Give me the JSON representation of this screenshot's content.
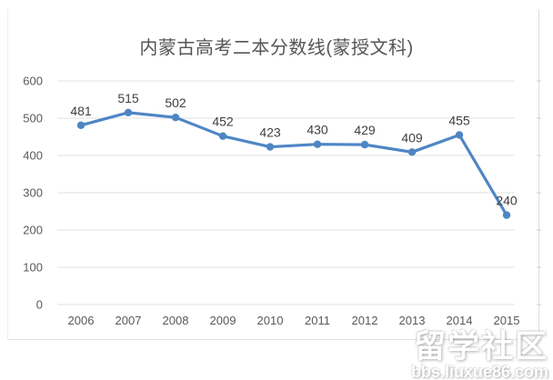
{
  "page": {
    "background": "#ffffff"
  },
  "chart_data": {
    "type": "line",
    "title": "内蒙古高考二本分数线(蒙授文科)",
    "categories": [
      "2006",
      "2007",
      "2008",
      "2009",
      "2010",
      "2011",
      "2012",
      "2013",
      "2014",
      "2015"
    ],
    "values": [
      481,
      515,
      502,
      452,
      423,
      430,
      429,
      409,
      455,
      240
    ],
    "xlabel": "",
    "ylabel": "",
    "ylim": [
      0,
      600
    ],
    "yticks": [
      0,
      100,
      200,
      300,
      400,
      500,
      600
    ],
    "grid": "horizontal",
    "legend": "none",
    "data_labels": true,
    "line_color": "#4e86c4",
    "marker": "circle",
    "gridline_color": "#e2e2e2",
    "axis_label_color": "#595959",
    "data_label_color": "#3f3f3f",
    "frame_color": "#e0e0e0",
    "title_color": "#555555"
  },
  "watermark": {
    "site_name": "留学社区",
    "site_url": "bbs.liuxue86.com"
  }
}
